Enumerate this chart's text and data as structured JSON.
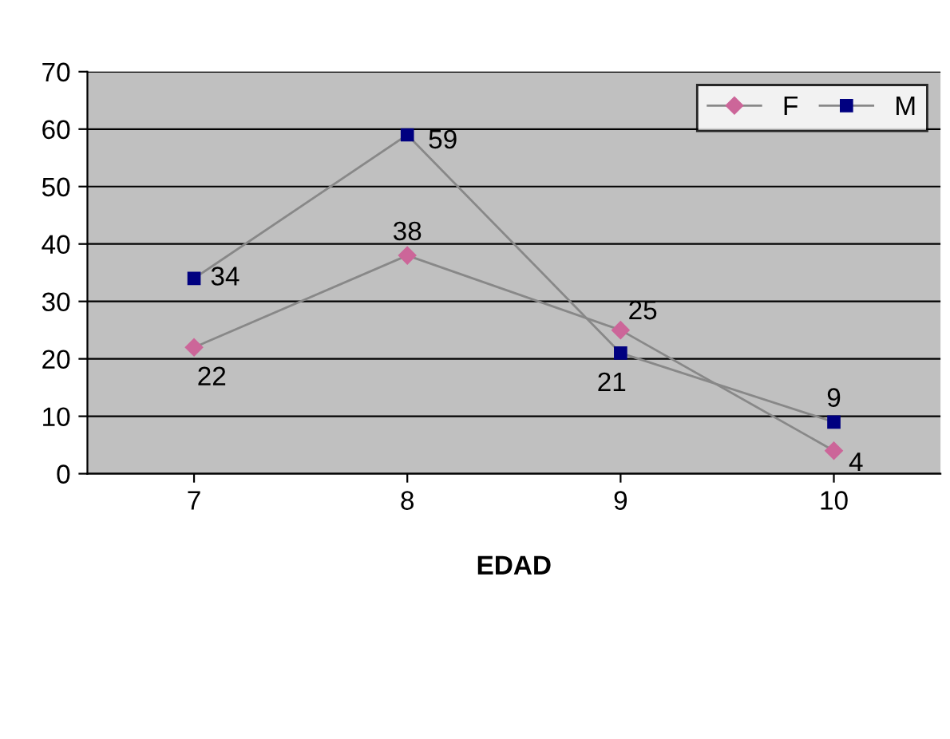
{
  "chart_data": {
    "type": "line",
    "xlabel": "EDAD",
    "categories": [
      "7",
      "8",
      "9",
      "10"
    ],
    "series": [
      {
        "name": "F",
        "color": "#cc6699",
        "values": [
          22,
          38,
          25,
          4
        ],
        "marker": "diamond"
      },
      {
        "name": "M",
        "color": "#000080",
        "values": [
          34,
          59,
          21,
          9
        ],
        "marker": "square"
      }
    ],
    "ylim": [
      0,
      70
    ],
    "yticks": [
      0,
      10,
      20,
      30,
      40,
      50,
      60,
      70
    ],
    "grid": "y",
    "legend": "top right",
    "data_labels": true,
    "line_style": "solid"
  }
}
